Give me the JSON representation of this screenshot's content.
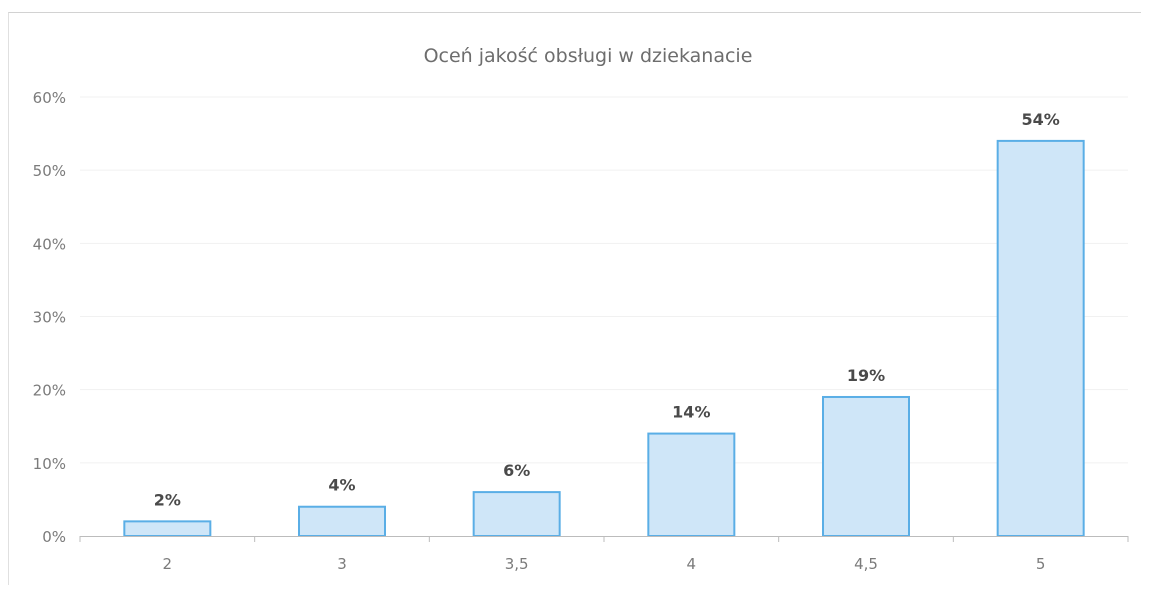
{
  "chart_data": {
    "type": "bar",
    "title": "Oceń jakość obsługi w dziekanacie",
    "categories": [
      "2",
      "3",
      "3,5",
      "4",
      "4,5",
      "5"
    ],
    "values": [
      2,
      4,
      6,
      14,
      19,
      54
    ],
    "value_labels": [
      "2%",
      "4%",
      "6%",
      "14%",
      "19%",
      "54%"
    ],
    "xlabel": "",
    "ylabel": "",
    "ylim": [
      0,
      60
    ],
    "y_ticks": [
      0,
      10,
      20,
      30,
      40,
      50,
      60
    ],
    "y_tick_labels": [
      "0%",
      "10%",
      "20%",
      "30%",
      "40%",
      "50%",
      "60%"
    ],
    "grid": false,
    "legend": "none",
    "colors": {
      "bar_fill": "#cfe6f8",
      "bar_stroke": "#5aaee6",
      "text": "#6d6d6d"
    }
  }
}
